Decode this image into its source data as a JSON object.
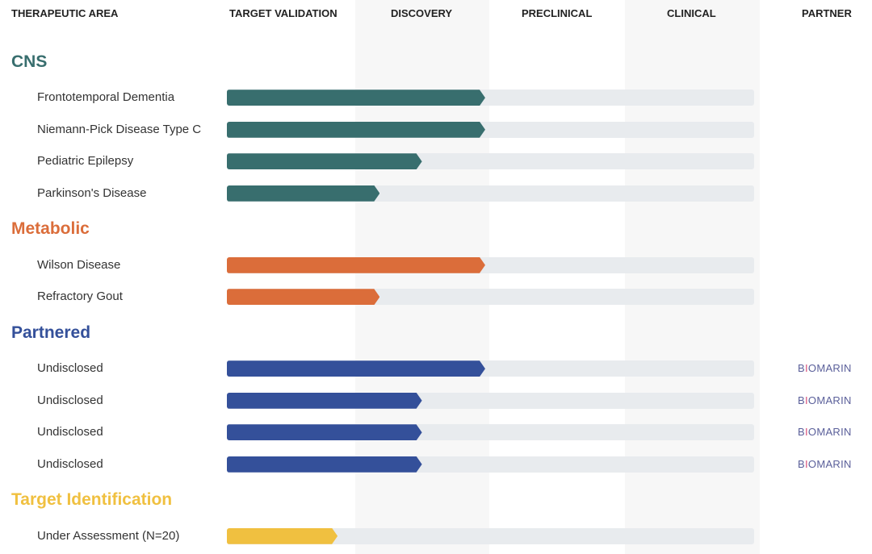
{
  "chart_data": {
    "type": "pipeline-bar",
    "columns": [
      "THERAPEUTIC AREA",
      "TARGET VALIDATION",
      "DISCOVERY",
      "PRECLINICAL",
      "CLINICAL",
      "PARTNER"
    ],
    "progress_unit": "fraction of track (Target Validation start to Clinical end)",
    "groups": [
      {
        "name": "CNS",
        "color": "#386e6e",
        "programs": [
          {
            "name": "Frontotemporal Dementia",
            "progress": 0.49,
            "partner": ""
          },
          {
            "name": "Niemann-Pick Disease Type C",
            "progress": 0.49,
            "partner": ""
          },
          {
            "name": "Pediatric Epilepsy",
            "progress": 0.37,
            "partner": ""
          },
          {
            "name": "Parkinson's Disease",
            "progress": 0.29,
            "partner": ""
          }
        ]
      },
      {
        "name": "Metabolic",
        "color": "#db6d3a",
        "programs": [
          {
            "name": "Wilson Disease",
            "progress": 0.49,
            "partner": ""
          },
          {
            "name": "Refractory Gout",
            "progress": 0.29,
            "partner": ""
          }
        ]
      },
      {
        "name": "Partnered",
        "color": "#34509a",
        "programs": [
          {
            "name": "Undisclosed",
            "progress": 0.49,
            "partner": "BIOMARIN"
          },
          {
            "name": "Undisclosed",
            "progress": 0.37,
            "partner": "BIOMARIN"
          },
          {
            "name": "Undisclosed",
            "progress": 0.37,
            "partner": "BIOMARIN"
          },
          {
            "name": "Undisclosed",
            "progress": 0.37,
            "partner": "BIOMARIN"
          }
        ]
      },
      {
        "name": "Target Identification",
        "color": "#f0c040",
        "programs": [
          {
            "name": "Under Assessment (N=20)",
            "progress": 0.21,
            "partner": ""
          }
        ]
      }
    ]
  }
}
